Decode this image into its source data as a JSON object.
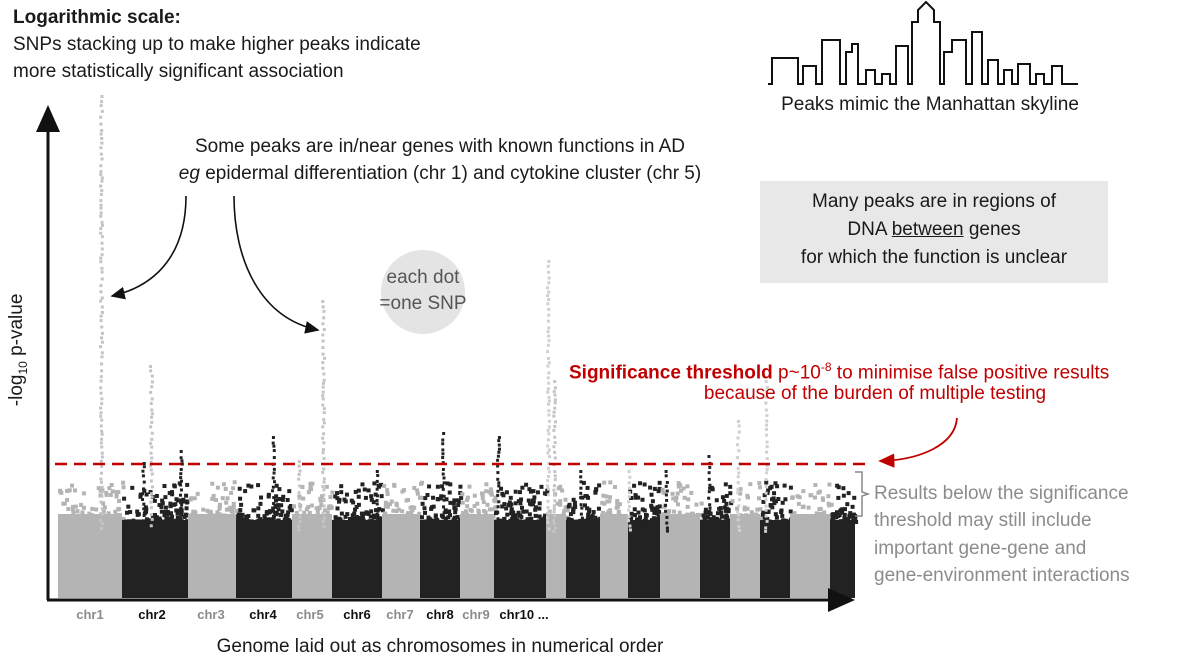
{
  "header": {
    "title": "Logarithmic scale:",
    "lines": [
      "SNPs stacking up to make higher peaks indicate",
      "more statistically significant association"
    ]
  },
  "skyline_caption": "Peaks mimic the Manhattan skyline",
  "genes_note": {
    "line1": "Some peaks are in/near genes with known functions in AD",
    "eg": "eg",
    "line2_rest": " epidermal differentiation (chr 1) and cytokine cluster (chr 5)"
  },
  "dot_note": [
    "each dot",
    "=one SNP"
  ],
  "intergenic_note": {
    "line1": "Many peaks are in regions of",
    "line2_before": "DNA ",
    "line2_underlined": "between",
    "line2_after": " genes",
    "line3": "for which the function is unclear"
  },
  "threshold_note": {
    "bold": "Significance threshold",
    "text": " p~10",
    "superscript": "-8",
    "rest": " to minimise false positive results",
    "line2": "because of the burden of multiple testing"
  },
  "below_note": [
    "Results below the significance",
    "threshold may still include",
    "important gene-gene and",
    "gene-environment interactions"
  ],
  "y_axis": {
    "prefix": "-log",
    "subscript": "10",
    "suffix": " p-value"
  },
  "chromosomes": [
    "chr1",
    "chr2",
    "chr3",
    "chr4",
    "chr5",
    "chr6",
    "chr7",
    "chr8",
    "chr9",
    "chr10 ..."
  ],
  "x_axis_label": "Genome laid out as chromosomes in numerical order"
}
